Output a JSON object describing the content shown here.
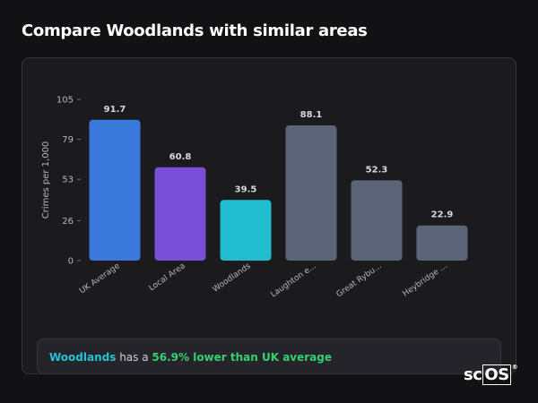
{
  "page": {
    "title": "Compare Woodlands with similar areas"
  },
  "chart_data": {
    "type": "bar",
    "ylabel": "Crimes per 1,000",
    "xlabel": "",
    "ylim": [
      0,
      105
    ],
    "yticks": [
      0,
      26,
      53,
      79,
      105
    ],
    "grid": false,
    "categories": [
      "UK Average",
      "Local Area",
      "Woodlands",
      "Laughton e...",
      "Great Rybu...",
      "Heybridge ..."
    ],
    "values": [
      91.7,
      60.8,
      39.5,
      88.1,
      52.3,
      22.9
    ],
    "value_labels": [
      "91.7",
      "60.8",
      "39.5",
      "88.1",
      "52.3",
      "22.9"
    ],
    "colors": [
      "#3a78dc",
      "#7a4fd8",
      "#22bcd0",
      "#5b6577",
      "#5b6577",
      "#5b6577"
    ]
  },
  "summary": {
    "subject": "Woodlands",
    "middle": " has a ",
    "highlight": "56.9% lower than UK average"
  },
  "logo": {
    "prefix": "sc",
    "boxed": "OS",
    "mark": "®"
  },
  "colors": {
    "background": "#121215",
    "card": "#1b1b1e",
    "accent_cyan": "#22c3d6",
    "accent_green": "#34d170"
  }
}
